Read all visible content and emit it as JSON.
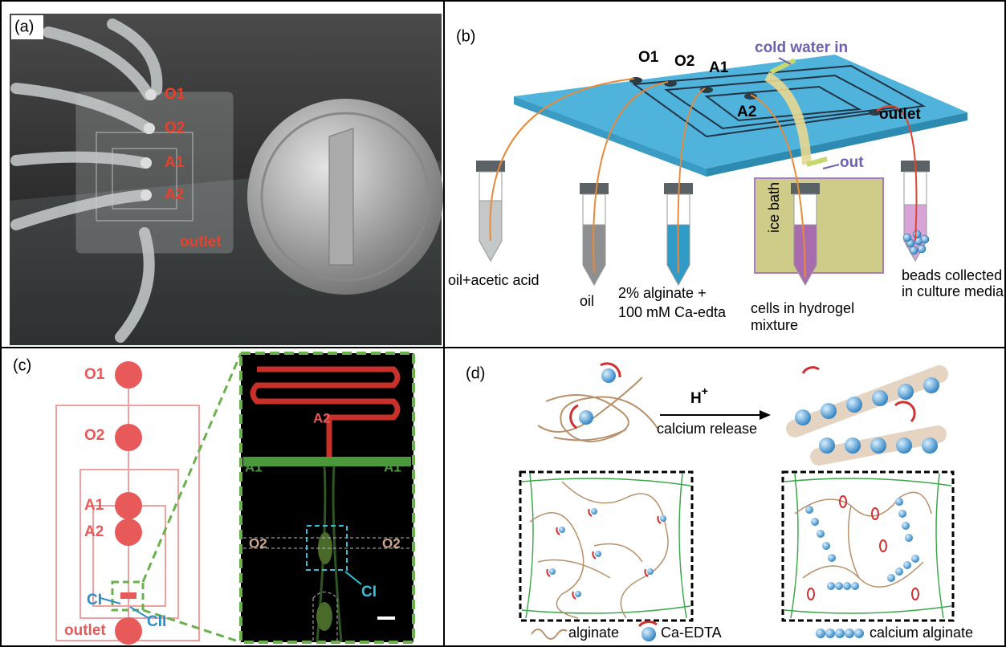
{
  "panel_a": {
    "label": "(a)",
    "ports": [
      "O1",
      "O2",
      "A1",
      "A2",
      "outlet"
    ]
  },
  "panel_b": {
    "label": "(b)",
    "cold_water_in": "cold water in",
    "ports": [
      "O1",
      "O2",
      "A1",
      "A2"
    ],
    "outlet": "outlet",
    "out": "out",
    "ice_bath": "ice bath",
    "tube_labels": {
      "oil_acetic": "oil+acetic acid",
      "oil": "oil",
      "alginate": [
        "2% alginate +",
        "100 mM Ca-edta"
      ],
      "cells": [
        "cells in hydrogel",
        "mixture"
      ],
      "beads": [
        "beads collected",
        "in culture media"
      ]
    }
  },
  "panel_c": {
    "label": "(c)",
    "ports": [
      "O1",
      "O2",
      "A1",
      "A2",
      "outlet"
    ],
    "junctions": [
      "CI",
      "CII"
    ],
    "inset": {
      "A2": "A2",
      "A1": [
        "A1",
        "A1"
      ],
      "O2": [
        "O2",
        "O2"
      ],
      "CI": "CI"
    }
  },
  "panel_d": {
    "label": "(d)",
    "reagent": {
      "base": "H",
      "sup": "+"
    },
    "step": "calcium release",
    "legend": [
      "alginate",
      "Ca-EDTA",
      "calcium alginate"
    ]
  }
}
